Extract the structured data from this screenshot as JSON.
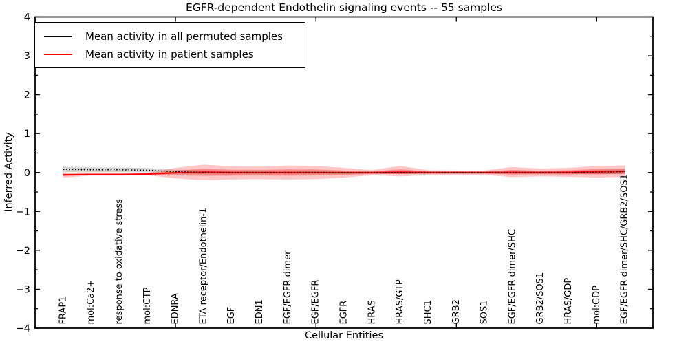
{
  "figure": {
    "title": "EGFR-dependent Endothelin signaling events -- 55 samples",
    "xlabel": "Cellular Entities",
    "ylabel": "Inferred Activity"
  },
  "legend": {
    "items": [
      {
        "label": "Mean activity in all permuted samples",
        "color": "#000000"
      },
      {
        "label": "Mean activity in patient samples",
        "color": "#ff0000"
      }
    ]
  },
  "colors": {
    "patient_line": "#ff0000",
    "permuted_line": "#000000",
    "patient_band_outer": "rgba(255,0,0,0.22)",
    "patient_band_inner": "rgba(255,0,0,0.30)",
    "permuted_band": "rgba(0,0,0,0.16)",
    "axis": "#000000"
  },
  "chart_data": {
    "type": "line",
    "title": "EGFR-dependent Endothelin signaling events -- 55 samples",
    "xlabel": "Cellular Entities",
    "ylabel": "Inferred Activity",
    "ylim": [
      -4,
      4
    ],
    "xlim": [
      0,
      22
    ],
    "grid": false,
    "legend_position": "upper left",
    "yticks": [
      4,
      3,
      2,
      1,
      0,
      -1,
      -2,
      -3,
      -4
    ],
    "ytick_labels": [
      "4",
      "3",
      "2",
      "1",
      "0",
      "−1",
      "−2",
      "−3",
      "−4"
    ],
    "yticks_minor": [
      3.5,
      2.5,
      1.5,
      0.5,
      -0.5,
      -1.5,
      -2.5,
      -3.5
    ],
    "xticks_major": [
      5,
      10,
      15,
      20
    ],
    "x": [
      1,
      2,
      3,
      4,
      5,
      6,
      7,
      8,
      9,
      10,
      11,
      12,
      13,
      14,
      15,
      16,
      17,
      18,
      19,
      20,
      21
    ],
    "categories": [
      "FRAP1",
      "mol:Ca2+",
      "response to oxidative stress",
      "mol:GTP",
      "EDNRA",
      "ETA receptor/Endothelin-1",
      "EGF",
      "EDN1",
      "EGF/EGFR dimer",
      "EGF/EGFR",
      "EGFR",
      "HRAS",
      "HRAS/GTP",
      "SHC1",
      "GRB2",
      "SOS1",
      "EGF/EGFR dimer/SHC",
      "GRB2/SOS1",
      "HRAS/GDP",
      "mol:GDP",
      "EGF/EGFR dimer/SHC/GRB2/SOS1"
    ],
    "series": [
      {
        "name": "Mean activity in all permuted samples",
        "color": "#000000",
        "style": "dotted",
        "values": [
          0.08,
          0.07,
          0.07,
          0.06,
          0.02,
          0.005,
          0,
          0,
          0,
          0,
          0,
          0,
          0,
          0,
          0,
          0,
          0,
          0,
          0,
          0.01,
          0.02
        ]
      },
      {
        "name": "Mean activity in patient samples",
        "color": "#ff0000",
        "style": "solid",
        "values": [
          -0.06,
          -0.05,
          -0.05,
          -0.04,
          -0.01,
          0.01,
          0,
          0,
          0,
          0,
          -0.005,
          -0.005,
          0.01,
          0,
          0,
          0,
          0.005,
          0,
          0.005,
          0.02,
          0.03
        ]
      }
    ],
    "bands": [
      {
        "name": "permuted-range",
        "color": "rgba(0,0,0,0.16)",
        "upper": [
          0.15,
          0.135,
          0.13,
          0.115,
          0.07,
          0.055,
          0.045,
          0.04,
          0.04,
          0.04,
          0.04,
          0.04,
          0.04,
          0.035,
          0.035,
          0.035,
          0.04,
          0.04,
          0.045,
          0.06,
          0.08
        ],
        "lower": [
          0.01,
          0.005,
          0.01,
          0.005,
          -0.03,
          -0.045,
          -0.045,
          -0.04,
          -0.04,
          -0.04,
          -0.04,
          -0.04,
          -0.04,
          -0.035,
          -0.035,
          -0.035,
          -0.04,
          -0.04,
          -0.045,
          -0.04,
          -0.04
        ]
      },
      {
        "name": "patient-range-outer",
        "color": "rgba(255,0,0,0.22)",
        "upper": [
          0.0,
          -0.02,
          -0.02,
          -0.01,
          0.12,
          0.2,
          0.16,
          0.15,
          0.18,
          0.17,
          0.12,
          0.06,
          0.17,
          0.06,
          0.05,
          0.05,
          0.14,
          0.1,
          0.12,
          0.17,
          0.18
        ],
        "lower": [
          -0.13,
          -0.08,
          -0.08,
          -0.07,
          -0.15,
          -0.2,
          -0.18,
          -0.17,
          -0.18,
          -0.17,
          -0.13,
          -0.07,
          -0.1,
          -0.07,
          -0.06,
          -0.06,
          -0.12,
          -0.1,
          -0.11,
          -0.13,
          -0.11
        ]
      },
      {
        "name": "patient-range-inner",
        "color": "rgba(255,0,0,0.30)",
        "upper": [
          -0.033,
          -0.037,
          -0.037,
          -0.027,
          0.049,
          0.096,
          0.072,
          0.068,
          0.081,
          0.077,
          0.051,
          0.024,
          0.082,
          0.027,
          0.023,
          0.023,
          0.066,
          0.045,
          0.057,
          0.088,
          0.098
        ],
        "lower": [
          -0.092,
          -0.064,
          -0.064,
          -0.054,
          -0.073,
          -0.085,
          -0.081,
          -0.077,
          -0.081,
          -0.077,
          -0.061,
          -0.034,
          -0.04,
          -0.032,
          -0.027,
          -0.027,
          -0.051,
          -0.045,
          -0.047,
          -0.048,
          -0.033
        ]
      }
    ]
  }
}
